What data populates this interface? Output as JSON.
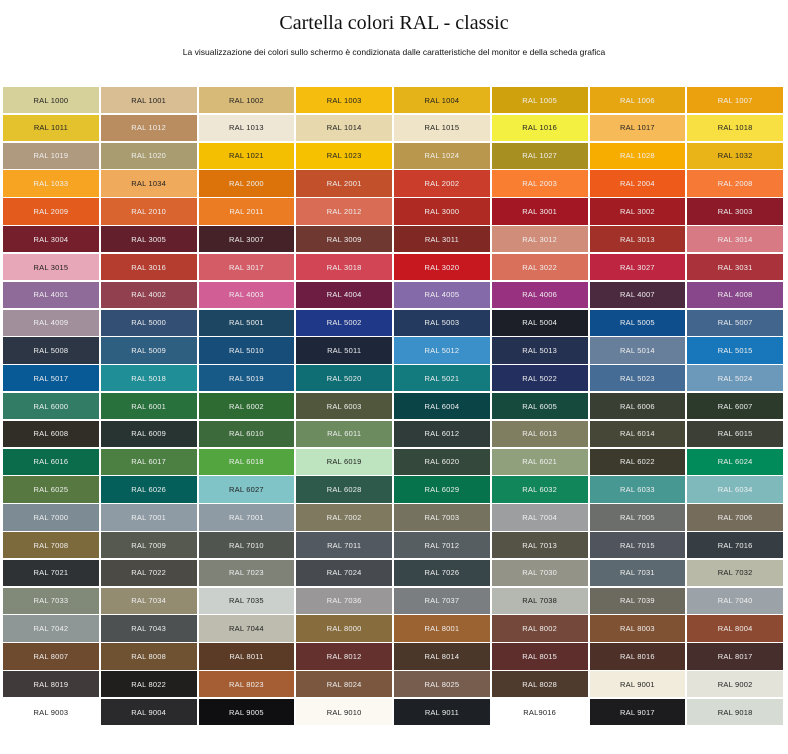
{
  "header": {
    "title": "Cartella colori RAL - classic",
    "subtitle": "La visualizzazione dei colori sullo schermo è condizionata dalle caratteristiche del monitor e della scheda grafica"
  },
  "swatches": [
    {
      "label": "RAL 1000",
      "color": "#D6D09A"
    },
    {
      "label": "RAL 1001",
      "color": "#D9BD93"
    },
    {
      "label": "RAL 1002",
      "color": "#D8BA78"
    },
    {
      "label": "RAL 1003",
      "color": "#F5BD0D"
    },
    {
      "label": "RAL 1004",
      "color": "#E4B31A"
    },
    {
      "label": "RAL 1005",
      "color": "#CFA10C"
    },
    {
      "label": "RAL 1006",
      "color": "#E5A612"
    },
    {
      "label": "RAL 1007",
      "color": "#EBA10E"
    },
    {
      "label": "RAL 1011",
      "color": "#E3C22E"
    },
    {
      "label": "RAL 1012",
      "color": "#B98D5F"
    },
    {
      "label": "RAL 1013",
      "color": "#EEE7D5"
    },
    {
      "label": "RAL 1014",
      "color": "#E7D8AD"
    },
    {
      "label": "RAL 1015",
      "color": "#EFE4C8"
    },
    {
      "label": "RAL 1016",
      "color": "#F3F042"
    },
    {
      "label": "RAL 1017",
      "color": "#F7BA58"
    },
    {
      "label": "RAL 1018",
      "color": "#F8E043"
    },
    {
      "label": "RAL 1019",
      "color": "#AF9A80"
    },
    {
      "label": "RAL 1020",
      "color": "#A99C70"
    },
    {
      "label": "RAL 1021",
      "color": "#F4BF00"
    },
    {
      "label": "RAL 1023",
      "color": "#F6C200"
    },
    {
      "label": "RAL 1024",
      "color": "#B9984D"
    },
    {
      "label": "RAL 1027",
      "color": "#A78F22"
    },
    {
      "label": "RAL 1028",
      "color": "#F7AC00"
    },
    {
      "label": "RAL 1032",
      "color": "#E8B418"
    },
    {
      "label": "RAL 1033",
      "color": "#F7A423"
    },
    {
      "label": "RAL 1034",
      "color": "#EFAA5C"
    },
    {
      "label": "RAL 2000",
      "color": "#DB730A"
    },
    {
      "label": "RAL 2001",
      "color": "#C2512B"
    },
    {
      "label": "RAL 2002",
      "color": "#CB3D2B"
    },
    {
      "label": "RAL 2003",
      "color": "#F97E32"
    },
    {
      "label": "RAL 2004",
      "color": "#EE5A19"
    },
    {
      "label": "RAL 2008",
      "color": "#F77936"
    },
    {
      "label": "RAL 2009",
      "color": "#E35C1E"
    },
    {
      "label": "RAL 2010",
      "color": "#DA6430"
    },
    {
      "label": "RAL 2011",
      "color": "#EC7C24"
    },
    {
      "label": "RAL 2012",
      "color": "#D96C55"
    },
    {
      "label": "RAL 3000",
      "color": "#AF2A22"
    },
    {
      "label": "RAL 3001",
      "color": "#A31624"
    },
    {
      "label": "RAL 3002",
      "color": "#A21D23"
    },
    {
      "label": "RAL 3003",
      "color": "#8C1A29"
    },
    {
      "label": "RAL 3004",
      "color": "#751E2C"
    },
    {
      "label": "RAL 3005",
      "color": "#63202C"
    },
    {
      "label": "RAL 3007",
      "color": "#452227"
    },
    {
      "label": "RAL 3009",
      "color": "#6F3831"
    },
    {
      "label": "RAL 3011",
      "color": "#7F2824"
    },
    {
      "label": "RAL 3012",
      "color": "#D08D7A"
    },
    {
      "label": "RAL 3013",
      "color": "#A23129"
    },
    {
      "label": "RAL 3014",
      "color": "#D77A84"
    },
    {
      "label": "RAL 3015",
      "color": "#E8A7B9"
    },
    {
      "label": "RAL 3016",
      "color": "#B53D2F"
    },
    {
      "label": "RAL 3017",
      "color": "#D45C67"
    },
    {
      "label": "RAL 3018",
      "color": "#D14555"
    },
    {
      "label": "RAL 3020",
      "color": "#C8181F"
    },
    {
      "label": "RAL 3022",
      "color": "#D9705B"
    },
    {
      "label": "RAL 3027",
      "color": "#BD2540"
    },
    {
      "label": "RAL 3031",
      "color": "#AA333B"
    },
    {
      "label": "RAL 4001",
      "color": "#8F6B9A"
    },
    {
      "label": "RAL 4002",
      "color": "#90404F"
    },
    {
      "label": "RAL 4003",
      "color": "#D15E94"
    },
    {
      "label": "RAL 4004",
      "color": "#6D1D42"
    },
    {
      "label": "RAL 4005",
      "color": "#856AAA"
    },
    {
      "label": "RAL 4006",
      "color": "#983280"
    },
    {
      "label": "RAL 4007",
      "color": "#4B2A40"
    },
    {
      "label": "RAL 4008",
      "color": "#88478A"
    },
    {
      "label": "RAL 4009",
      "color": "#A1909C"
    },
    {
      "label": "RAL 5000",
      "color": "#334F74"
    },
    {
      "label": "RAL 5001",
      "color": "#1D4662"
    },
    {
      "label": "RAL 5002",
      "color": "#1F3888"
    },
    {
      "label": "RAL 5003",
      "color": "#243A5E"
    },
    {
      "label": "RAL 5004",
      "color": "#1C1F28"
    },
    {
      "label": "RAL 5005",
      "color": "#0E4E8C"
    },
    {
      "label": "RAL 5007",
      "color": "#41658D"
    },
    {
      "label": "RAL 5008",
      "color": "#2C3644"
    },
    {
      "label": "RAL 5009",
      "color": "#2E5E80"
    },
    {
      "label": "RAL 5010",
      "color": "#174D79"
    },
    {
      "label": "RAL 5011",
      "color": "#1D2739"
    },
    {
      "label": "RAL 5012",
      "color": "#3B90C9"
    },
    {
      "label": "RAL 5013",
      "color": "#253151"
    },
    {
      "label": "RAL 5014",
      "color": "#687F9C"
    },
    {
      "label": "RAL 5015",
      "color": "#1777BA"
    },
    {
      "label": "RAL 5017",
      "color": "#085A96"
    },
    {
      "label": "RAL 5018",
      "color": "#1F8E96"
    },
    {
      "label": "RAL 5019",
      "color": "#185A87"
    },
    {
      "label": "RAL 5020",
      "color": "#0F6E74"
    },
    {
      "label": "RAL 5021",
      "color": "#137A7E"
    },
    {
      "label": "RAL 5022",
      "color": "#232F5E"
    },
    {
      "label": "RAL 5023",
      "color": "#456C95"
    },
    {
      "label": "RAL 5024",
      "color": "#6C98BA"
    },
    {
      "label": "RAL 6000",
      "color": "#327C66"
    },
    {
      "label": "RAL 6001",
      "color": "#28703C"
    },
    {
      "label": "RAL 6002",
      "color": "#2D6B32"
    },
    {
      "label": "RAL 6003",
      "color": "#50573C"
    },
    {
      "label": "RAL 6004",
      "color": "#0B4447"
    },
    {
      "label": "RAL 6005",
      "color": "#164A3D"
    },
    {
      "label": "RAL 6006",
      "color": "#3A3F33"
    },
    {
      "label": "RAL 6007",
      "color": "#2C3A2C"
    },
    {
      "label": "RAL 6008",
      "color": "#302E26"
    },
    {
      "label": "RAL 6009",
      "color": "#273431"
    },
    {
      "label": "RAL 6010",
      "color": "#3D6A3A"
    },
    {
      "label": "RAL 6011",
      "color": "#6C8B5F"
    },
    {
      "label": "RAL 6012",
      "color": "#303C3A"
    },
    {
      "label": "RAL 6013",
      "color": "#7F7E61"
    },
    {
      "label": "RAL 6014",
      "color": "#474737"
    },
    {
      "label": "RAL 6015",
      "color": "#3B3F36"
    },
    {
      "label": "RAL 6016",
      "color": "#0B6C4B"
    },
    {
      "label": "RAL 6017",
      "color": "#4B8042"
    },
    {
      "label": "RAL 6018",
      "color": "#53A540"
    },
    {
      "label": "RAL 6019",
      "color": "#BDE4BE"
    },
    {
      "label": "RAL 6020",
      "color": "#35483C"
    },
    {
      "label": "RAL 6021",
      "color": "#90A07D"
    },
    {
      "label": "RAL 6022",
      "color": "#3B3A2C"
    },
    {
      "label": "RAL 6024",
      "color": "#018B5A"
    },
    {
      "label": "RAL 6025",
      "color": "#577840"
    },
    {
      "label": "RAL 6026",
      "color": "#045F5B"
    },
    {
      "label": "RAL 6027",
      "color": "#80C4C7"
    },
    {
      "label": "RAL 6028",
      "color": "#2E5A4C"
    },
    {
      "label": "RAL 6029",
      "color": "#07734D"
    },
    {
      "label": "RAL 6032",
      "color": "#12865B"
    },
    {
      "label": "RAL 6033",
      "color": "#479793"
    },
    {
      "label": "RAL 6034",
      "color": "#7FB9BC"
    },
    {
      "label": "RAL 7000",
      "color": "#7D8B95"
    },
    {
      "label": "RAL 7001",
      "color": "#8E9BA5"
    },
    {
      "label": "RAL 7001",
      "color": "#8E9BA5"
    },
    {
      "label": "RAL 7002",
      "color": "#7F7A5F"
    },
    {
      "label": "RAL 7003",
      "color": "#75725F"
    },
    {
      "label": "RAL 7004",
      "color": "#9C9EA0"
    },
    {
      "label": "RAL 7005",
      "color": "#6B6E6B"
    },
    {
      "label": "RAL 7006",
      "color": "#766C5C"
    },
    {
      "label": "RAL 7008",
      "color": "#7D6A3C"
    },
    {
      "label": "RAL 7009",
      "color": "#55594F"
    },
    {
      "label": "RAL 7010",
      "color": "#515550"
    },
    {
      "label": "RAL 7011",
      "color": "#525960"
    },
    {
      "label": "RAL 7012",
      "color": "#575E61"
    },
    {
      "label": "RAL 7013",
      "color": "#555246"
    },
    {
      "label": "RAL 7015",
      "color": "#50545C"
    },
    {
      "label": "RAL 7016",
      "color": "#373E43"
    },
    {
      "label": "RAL 7021",
      "color": "#2F3235"
    },
    {
      "label": "RAL 7022",
      "color": "#4B4A45"
    },
    {
      "label": "RAL 7023",
      "color": "#7F8277"
    },
    {
      "label": "RAL 7024",
      "color": "#474B4F"
    },
    {
      "label": "RAL 7026",
      "color": "#384549"
    },
    {
      "label": "RAL 7030",
      "color": "#939388"
    },
    {
      "label": "RAL 7031",
      "color": "#5D6970"
    },
    {
      "label": "RAL 7032",
      "color": "#B9B9A8"
    },
    {
      "label": "RAL 7033",
      "color": "#818979"
    },
    {
      "label": "RAL 7034",
      "color": "#938C71"
    },
    {
      "label": "RAL 7035",
      "color": "#CBD0CC"
    },
    {
      "label": "RAL 7036",
      "color": "#9A9798"
    },
    {
      "label": "RAL 7037",
      "color": "#7B7E80"
    },
    {
      "label": "RAL 7038",
      "color": "#B4B8B0"
    },
    {
      "label": "RAL 7039",
      "color": "#6C695E"
    },
    {
      "label": "RAL 7040",
      "color": "#9BA2A8"
    },
    {
      "label": "RAL 7042",
      "color": "#8F9696"
    },
    {
      "label": "RAL 7043",
      "color": "#4D5152"
    },
    {
      "label": "RAL 7044",
      "color": "#BDBCAE"
    },
    {
      "label": "RAL 8000",
      "color": "#876C3D"
    },
    {
      "label": "RAL 8001",
      "color": "#9B6232"
    },
    {
      "label": "RAL 8002",
      "color": "#74483A"
    },
    {
      "label": "RAL 8003",
      "color": "#7F5234"
    },
    {
      "label": "RAL 8004",
      "color": "#8D4A33"
    },
    {
      "label": "RAL 8007",
      "color": "#6E4A2F"
    },
    {
      "label": "RAL 8008",
      "color": "#6E5231"
    },
    {
      "label": "RAL 8011",
      "color": "#5B3A26"
    },
    {
      "label": "RAL 8012",
      "color": "#65312E"
    },
    {
      "label": "RAL 8014",
      "color": "#4A3729"
    },
    {
      "label": "RAL 8015",
      "color": "#5D2E2C"
    },
    {
      "label": "RAL 8016",
      "color": "#4D3028"
    },
    {
      "label": "RAL 8017",
      "color": "#452E2B"
    },
    {
      "label": "RAL 8019",
      "color": "#403A3A"
    },
    {
      "label": "RAL 8022",
      "color": "#211E1E"
    },
    {
      "label": "RAL 8023",
      "color": "#A55E33"
    },
    {
      "label": "RAL 8024",
      "color": "#7B5740"
    },
    {
      "label": "RAL 8025",
      "color": "#765D4E"
    },
    {
      "label": "RAL 8028",
      "color": "#4F3B2D"
    },
    {
      "label": "RAL 9001",
      "color": "#F2ECDC"
    },
    {
      "label": "RAL 9002",
      "color": "#E3E3DA"
    },
    {
      "label": "RAL 9003",
      "color": "#FFFFFF"
    },
    {
      "label": "RAL 9004",
      "color": "#2A2A2C"
    },
    {
      "label": "RAL 9005",
      "color": "#0F0F11"
    },
    {
      "label": "RAL 9010",
      "color": "#FBF9F2"
    },
    {
      "label": "RAL 9011",
      "color": "#1D2024"
    },
    {
      "label": "RAL9016",
      "color": "#FFFFFF"
    },
    {
      "label": "RAL 9017",
      "color": "#1C1C1E"
    },
    {
      "label": "RAL 9018",
      "color": "#D6DBD4"
    }
  ]
}
